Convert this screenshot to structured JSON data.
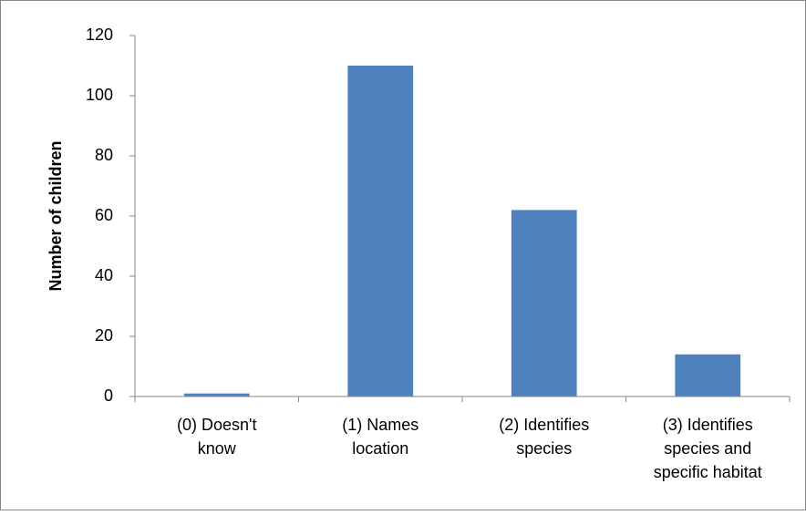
{
  "chart_data": {
    "type": "bar",
    "y_label": "Number of children",
    "categories": [
      "(0) Doesn't\nknow",
      "(1) Names\nlocation",
      "(2) Identifies\nspecies",
      "(3) Identifies\nspecies and\nspecific habitat"
    ],
    "values": [
      1,
      110,
      62,
      14
    ],
    "color": "#4f81bd",
    "ylim": [
      0,
      120
    ],
    "yticks": [
      0,
      20,
      40,
      60,
      80,
      100,
      120
    ],
    "grid": false
  }
}
